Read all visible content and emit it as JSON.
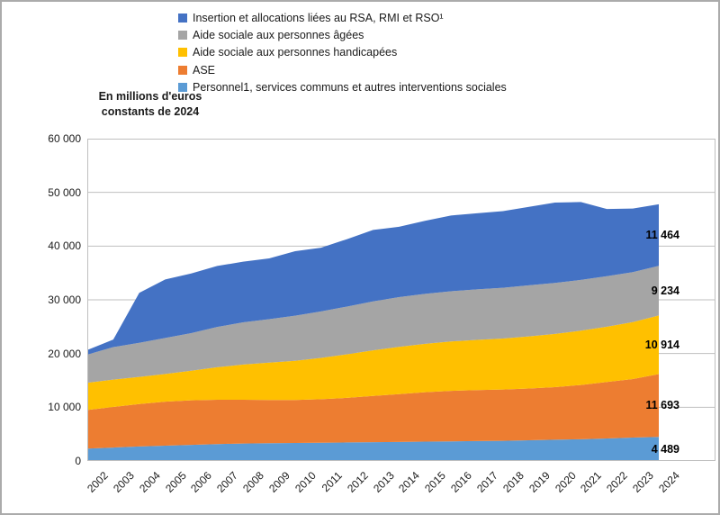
{
  "chart_data": {
    "type": "area",
    "stacked": true,
    "title_lines": [
      "En millions d'euros",
      "constants de 2024"
    ],
    "x": [
      2002,
      2003,
      2004,
      2005,
      2006,
      2007,
      2008,
      2009,
      2010,
      2011,
      2012,
      2013,
      2014,
      2015,
      2016,
      2017,
      2018,
      2019,
      2020,
      2021,
      2022,
      2023,
      2024
    ],
    "ylim": [
      0,
      60000
    ],
    "y_ticks": [
      "0",
      "10 000",
      "20 000",
      "30 000",
      "40 000",
      "50 000",
      "60 000"
    ],
    "grid": true,
    "legend_position": "top-left",
    "legend_order_top_to_bottom": [
      4,
      3,
      2,
      1,
      0
    ],
    "series": [
      {
        "name": "Personnel1, services communs et autres interventions sociales",
        "color": "#5B9BD5",
        "end_label": "4 489",
        "values": [
          2300,
          2500,
          2700,
          2850,
          3000,
          3150,
          3250,
          3300,
          3350,
          3400,
          3450,
          3500,
          3550,
          3600,
          3650,
          3700,
          3750,
          3850,
          3950,
          4050,
          4200,
          4350,
          4489
        ]
      },
      {
        "name": "ASE",
        "color": "#ED7D31",
        "end_label": "11 693",
        "values": [
          7200,
          7550,
          7900,
          8200,
          8300,
          8250,
          8150,
          8050,
          8000,
          8100,
          8300,
          8600,
          8900,
          9200,
          9400,
          9500,
          9550,
          9650,
          9800,
          10100,
          10500,
          10900,
          11693
        ]
      },
      {
        "name": "Aide sociale aux personnes handicapées",
        "color": "#FFC000",
        "end_label": "10 914",
        "values": [
          5050,
          5100,
          5050,
          5150,
          5500,
          6050,
          6550,
          6950,
          7300,
          7700,
          8100,
          8500,
          8800,
          9000,
          9200,
          9350,
          9500,
          9700,
          9900,
          10100,
          10300,
          10600,
          10914
        ]
      },
      {
        "name": "Aide sociale aux personnes âgées",
        "color": "#A5A5A5",
        "end_label": "9 234",
        "values": [
          5250,
          6050,
          6350,
          6700,
          7000,
          7500,
          7850,
          8100,
          8400,
          8650,
          8900,
          9100,
          9250,
          9300,
          9350,
          9400,
          9450,
          9500,
          9500,
          9450,
          9400,
          9300,
          9234
        ]
      },
      {
        "name": "Insertion et allocations liées au RSA, RMI et RSO¹",
        "color": "#4472C4",
        "end_label": "11 464",
        "values": [
          850,
          1400,
          9300,
          10900,
          11100,
          11350,
          11300,
          11300,
          12000,
          11850,
          12550,
          13300,
          13100,
          13600,
          14100,
          14150,
          14250,
          14600,
          14950,
          14500,
          12500,
          11850,
          11464
        ]
      }
    ],
    "colors": {
      "gridline": "#BFBFBF",
      "plot_border": "#BFBFBF",
      "frame_border": "#ABABAB",
      "text": "#1a1a1a"
    }
  }
}
